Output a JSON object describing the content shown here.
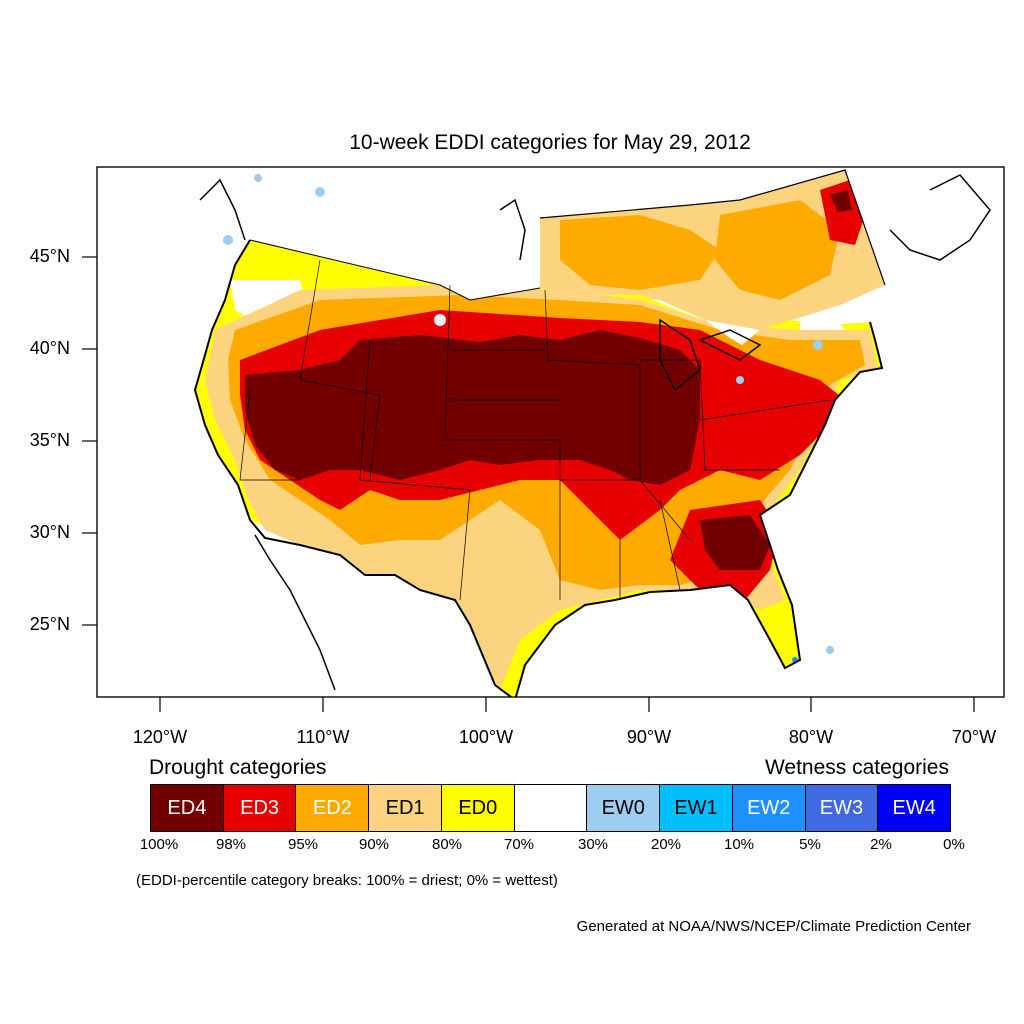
{
  "title": "10-week EDDI categories for May 29, 2012",
  "lat_labels": [
    "45°N",
    "40°N",
    "35°N",
    "30°N",
    "25°N"
  ],
  "lon_labels": [
    "120°W",
    "110°W",
    "100°W",
    "90°W",
    "80°W",
    "70°W"
  ],
  "legend": {
    "drought_heading": "Drought categories",
    "wetness_heading": "Wetness categories",
    "categories": [
      {
        "label": "ED4",
        "color": "#730000",
        "text_color": "#ffffff"
      },
      {
        "label": "ED3",
        "color": "#e60000",
        "text_color": "#ffffff"
      },
      {
        "label": "ED2",
        "color": "#ffaa00",
        "text_color": "#ffffff"
      },
      {
        "label": "ED1",
        "color": "#fcd37f",
        "text_color": "#000000"
      },
      {
        "label": "ED0",
        "color": "#ffff00",
        "text_color": "#000000"
      },
      {
        "label": "",
        "color": "#ffffff",
        "text_color": "#000000"
      },
      {
        "label": "EW0",
        "color": "#9dcdf0",
        "text_color": "#000000"
      },
      {
        "label": "EW1",
        "color": "#00bfff",
        "text_color": "#000000"
      },
      {
        "label": "EW2",
        "color": "#1e90ff",
        "text_color": "#ffffff"
      },
      {
        "label": "EW3",
        "color": "#4169e1",
        "text_color": "#ffffff"
      },
      {
        "label": "EW4",
        "color": "#0000ff",
        "text_color": "#ffffff"
      }
    ],
    "percentiles": [
      "100%",
      "98%",
      "95%",
      "90%",
      "80%",
      "70%",
      "30%",
      "20%",
      "10%",
      "5%",
      "2%",
      "0%"
    ]
  },
  "note": "(EDDI-percentile category breaks: 100% = driest; 0% = wettest)",
  "credit": "Generated at NOAA/NWS/NCEP/Climate Prediction Center"
}
